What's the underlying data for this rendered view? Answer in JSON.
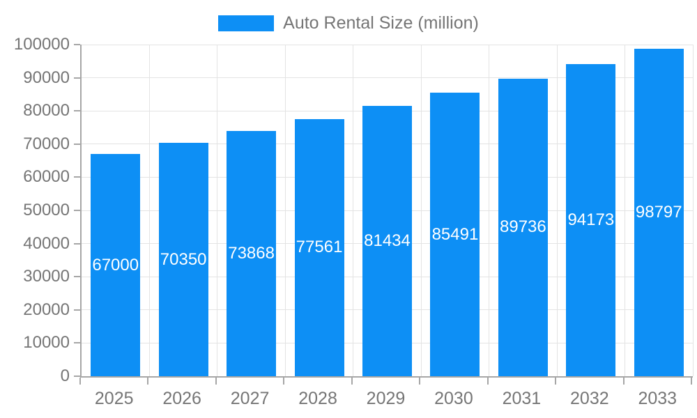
{
  "chart_data": {
    "type": "bar",
    "title": "Auto Rental Size (million)",
    "legend": [
      "Auto Rental Size (million)"
    ],
    "legend_position": "top-center",
    "categories": [
      "2025",
      "2026",
      "2027",
      "2028",
      "2029",
      "2030",
      "2031",
      "2032",
      "2033"
    ],
    "values": [
      67000,
      70350,
      73868,
      77561,
      81434,
      85491,
      89736,
      94173,
      98797
    ],
    "bar_labels_visible": true,
    "xlabel": "",
    "ylabel": "",
    "ylim": [
      0,
      100000
    ],
    "y_ticks": [
      0,
      10000,
      20000,
      30000,
      40000,
      50000,
      60000,
      70000,
      80000,
      90000,
      100000
    ],
    "grid": true,
    "colors": {
      "bar": "#0d8ff5",
      "text": "#757575",
      "grid": "#e3e3e3",
      "axis": "#a6a6a6",
      "bar_label": "#ffffff",
      "background": "#ffffff"
    }
  }
}
